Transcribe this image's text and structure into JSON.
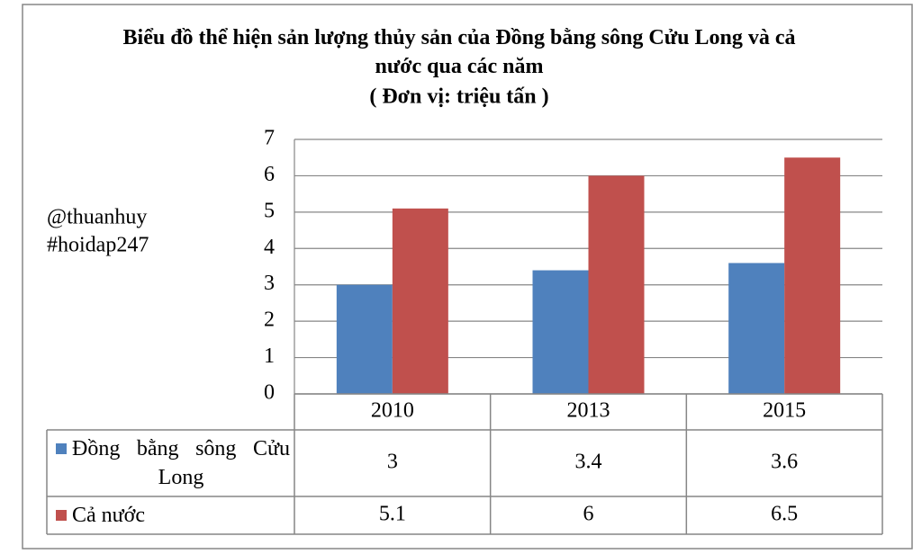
{
  "chart_data": {
    "type": "bar",
    "title": "Biểu đồ thể hiện sản lượng thủy sản của Đồng bằng sông Cửu Long và cả nước qua các năm",
    "subtitle": "( Đơn vị: triệu tấn )",
    "annotations": [
      "@thuanhuy",
      "#hoidap247"
    ],
    "categories": [
      "2010",
      "2013",
      "2015"
    ],
    "series": [
      {
        "name": "Đồng bằng sông Cửu Long",
        "color": "#4f81bd",
        "values": [
          3,
          3.4,
          3.6
        ]
      },
      {
        "name": "Cả nước",
        "color": "#c0504d",
        "values": [
          5.1,
          6,
          6.5
        ]
      }
    ],
    "ylim": [
      0,
      7
    ],
    "yticks": [
      0,
      1,
      2,
      3,
      4,
      5,
      6,
      7
    ],
    "grid": true,
    "data_table": true
  }
}
